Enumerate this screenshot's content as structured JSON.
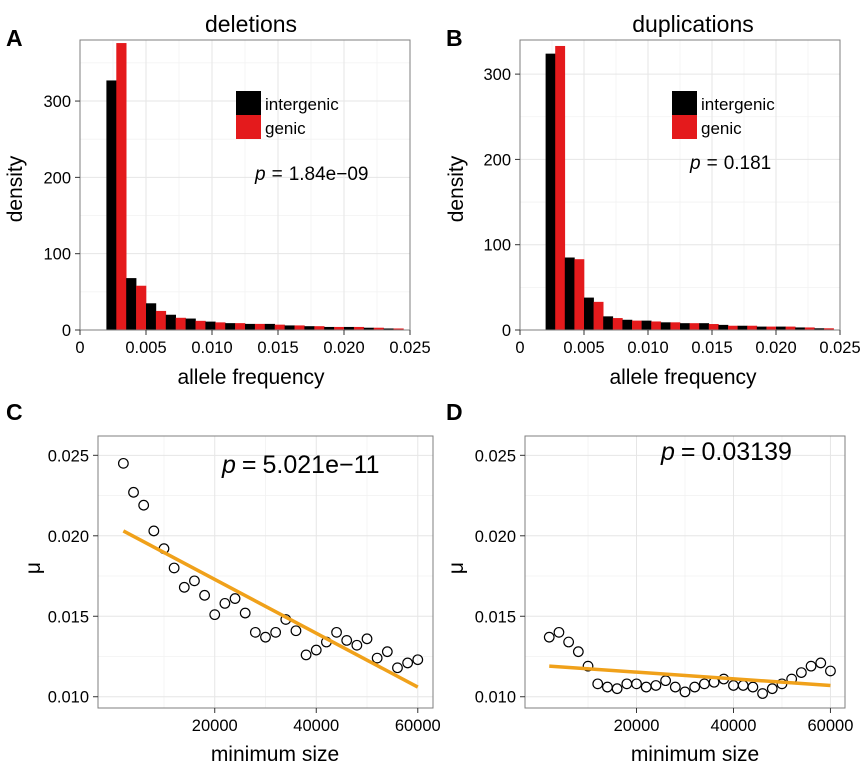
{
  "chart_data": [
    {
      "panel": "A",
      "type": "bar",
      "title": "deletions",
      "xlabel": "allele frequency",
      "ylabel": "density",
      "xlim": [
        0,
        0.025
      ],
      "ylim": [
        0,
        380
      ],
      "xticks": [
        "0",
        "0.005",
        "0.010",
        "0.015",
        "0.020",
        "0.025"
      ],
      "yticks": [
        "0",
        "100",
        "200",
        "300"
      ],
      "categories": [
        "0.002-0.0035",
        "0.0035-0.005",
        "0.005-0.0065",
        "0.0065-0.008",
        "0.008-0.0095",
        "0.0095-0.011",
        "0.011-0.0125",
        "0.0125-0.014",
        "0.014-0.0155",
        "0.0155-0.017",
        "0.017-0.0185",
        "0.0185-0.02",
        "0.02-0.0215",
        "0.0215-0.023",
        "0.023-0.0245"
      ],
      "bins": [
        [
          0.002,
          0.0035
        ],
        [
          0.0035,
          0.005
        ],
        [
          0.005,
          0.0065
        ],
        [
          0.0065,
          0.008
        ],
        [
          0.008,
          0.0095
        ],
        [
          0.0095,
          0.011
        ],
        [
          0.011,
          0.0125
        ],
        [
          0.0125,
          0.014
        ],
        [
          0.014,
          0.0155
        ],
        [
          0.0155,
          0.017
        ],
        [
          0.017,
          0.0185
        ],
        [
          0.0185,
          0.02
        ],
        [
          0.02,
          0.0215
        ],
        [
          0.0215,
          0.023
        ],
        [
          0.023,
          0.0245
        ]
      ],
      "series": [
        {
          "name": "intergenic",
          "color": "#000000",
          "values": [
            327,
            68,
            35,
            20,
            15,
            11,
            9,
            8,
            8,
            6,
            5,
            4,
            4,
            3,
            2
          ]
        },
        {
          "name": "genic",
          "color": "#e41a1c",
          "values": [
            376,
            58,
            25,
            16,
            12,
            10,
            9,
            8,
            7,
            6,
            5,
            4,
            4,
            3,
            2
          ]
        }
      ],
      "legend": [
        "intergenic",
        "genic"
      ],
      "legend_position": "top-right",
      "annotation": {
        "p": "p",
        "eq": "=",
        "value": "1.84e−09"
      },
      "grid": true
    },
    {
      "panel": "B",
      "type": "bar",
      "title": "duplications",
      "xlabel": "allele frequency",
      "ylabel": "density",
      "xlim": [
        0,
        0.025
      ],
      "ylim": [
        0,
        340
      ],
      "xticks": [
        "0",
        "0.005",
        "0.010",
        "0.015",
        "0.020",
        "0.025"
      ],
      "yticks": [
        "0",
        "100",
        "200",
        "300"
      ],
      "categories": [
        "0.002-0.0035",
        "0.0035-0.005",
        "0.005-0.0065",
        "0.0065-0.008",
        "0.008-0.0095",
        "0.0095-0.011",
        "0.011-0.0125",
        "0.0125-0.014",
        "0.014-0.0155",
        "0.0155-0.017",
        "0.017-0.0185",
        "0.0185-0.02",
        "0.02-0.0215",
        "0.0215-0.023",
        "0.023-0.0245"
      ],
      "bins": [
        [
          0.002,
          0.0035
        ],
        [
          0.0035,
          0.005
        ],
        [
          0.005,
          0.0065
        ],
        [
          0.0065,
          0.008
        ],
        [
          0.008,
          0.0095
        ],
        [
          0.0095,
          0.011
        ],
        [
          0.011,
          0.0125
        ],
        [
          0.0125,
          0.014
        ],
        [
          0.014,
          0.0155
        ],
        [
          0.0155,
          0.017
        ],
        [
          0.017,
          0.0185
        ],
        [
          0.0185,
          0.02
        ],
        [
          0.02,
          0.0215
        ],
        [
          0.0215,
          0.023
        ],
        [
          0.023,
          0.0245
        ]
      ],
      "series": [
        {
          "name": "intergenic",
          "color": "#000000",
          "values": [
            324,
            85,
            38,
            16,
            12,
            11,
            9,
            8,
            8,
            6,
            5,
            4,
            4,
            3,
            2
          ]
        },
        {
          "name": "genic",
          "color": "#e41a1c",
          "values": [
            333,
            83,
            33,
            14,
            11,
            10,
            9,
            8,
            7,
            5,
            5,
            4,
            4,
            3,
            2
          ]
        }
      ],
      "legend": [
        "intergenic",
        "genic"
      ],
      "legend_position": "top-right",
      "annotation": {
        "p": "p",
        "eq": "=",
        "value": "0.181"
      },
      "grid": true
    },
    {
      "panel": "C",
      "type": "scatter",
      "title": "",
      "xlabel": "minimum size",
      "ylabel": "μ",
      "xlim": [
        -3000,
        63000
      ],
      "ylim": [
        0.0093,
        0.0262
      ],
      "xticks": [
        "20000",
        "40000",
        "60000"
      ],
      "yticks": [
        "0.010",
        "0.015",
        "0.020",
        "0.025"
      ],
      "x": [
        2000,
        4000,
        6000,
        8000,
        10000,
        12000,
        14000,
        16000,
        18000,
        20000,
        22000,
        24000,
        26000,
        28000,
        30000,
        32000,
        34000,
        36000,
        38000,
        40000,
        42000,
        44000,
        46000,
        48000,
        50000,
        52000,
        54000,
        56000,
        58000,
        60000
      ],
      "y": [
        0.0245,
        0.0227,
        0.0219,
        0.0203,
        0.0192,
        0.018,
        0.0168,
        0.0172,
        0.0163,
        0.0151,
        0.0158,
        0.0161,
        0.0152,
        0.014,
        0.0137,
        0.014,
        0.0148,
        0.0141,
        0.0126,
        0.0129,
        0.0134,
        0.014,
        0.0135,
        0.0132,
        0.0136,
        0.0124,
        0.0128,
        0.0118,
        0.0121,
        0.0123
      ],
      "fit": {
        "x": [
          2000,
          60000
        ],
        "y": [
          0.0203,
          0.0106
        ],
        "color": "#f0a11a"
      },
      "point_color": "#000000",
      "annotation": {
        "p": "p",
        "eq": "=",
        "value": "5.021e−11"
      },
      "grid": true
    },
    {
      "panel": "D",
      "type": "scatter",
      "title": "",
      "xlabel": "minimum size",
      "ylabel": "μ",
      "xlim": [
        -3000,
        63000
      ],
      "ylim": [
        0.0093,
        0.0262
      ],
      "xticks": [
        "20000",
        "40000",
        "60000"
      ],
      "yticks": [
        "0.010",
        "0.015",
        "0.020",
        "0.025"
      ],
      "x": [
        2000,
        4000,
        6000,
        8000,
        10000,
        12000,
        14000,
        16000,
        18000,
        20000,
        22000,
        24000,
        26000,
        28000,
        30000,
        32000,
        34000,
        36000,
        38000,
        40000,
        42000,
        44000,
        46000,
        48000,
        50000,
        52000,
        54000,
        56000,
        58000,
        60000
      ],
      "y": [
        0.0137,
        0.014,
        0.0134,
        0.0128,
        0.0119,
        0.0108,
        0.0106,
        0.0105,
        0.0108,
        0.0108,
        0.0106,
        0.0107,
        0.011,
        0.0106,
        0.0103,
        0.0106,
        0.0108,
        0.0109,
        0.0111,
        0.0107,
        0.0107,
        0.0106,
        0.0102,
        0.0105,
        0.0108,
        0.0111,
        0.0115,
        0.0119,
        0.0121,
        0.0116
      ],
      "fit": {
        "x": [
          2000,
          60000
        ],
        "y": [
          0.0119,
          0.0107
        ],
        "color": "#f0a11a"
      },
      "point_color": "#000000",
      "annotation": {
        "p": "p",
        "eq": "=",
        "value": "0.03139"
      },
      "grid": true
    }
  ]
}
